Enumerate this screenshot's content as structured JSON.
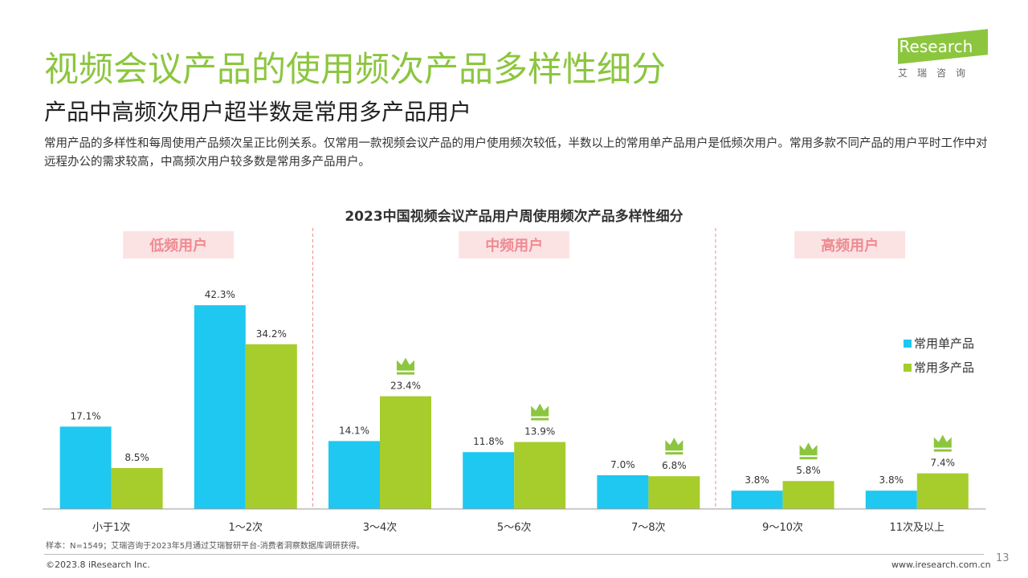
{
  "header": {
    "title": "视频会议产品的使用频次产品多样性细分",
    "subtitle": "产品中高频次用户超半数是常用多产品用户",
    "description": "常用产品的多样性和每周使用产品频次呈正比例关系。仅常用一款视频会议产品的用户使用频次较低，半数以上的常用单产品用户是低频次用户。常用多款不同产品的用户平时工作中对远程办公的需求较高，中高频次用户较多数是常用多产品用户。"
  },
  "logo": {
    "text": "iResearch",
    "subtext": "艾瑞咨询"
  },
  "chart_data": {
    "type": "bar",
    "title": "2023中国视频会议产品用户周使用频次产品多样性细分",
    "categories": [
      "小于1次",
      "1～2次",
      "3～4次",
      "5～6次",
      "7～8次",
      "9～10次",
      "11次及以上"
    ],
    "series": [
      {
        "name": "常用单产品",
        "color": "#1ec8f0",
        "values": [
          17.1,
          42.3,
          14.1,
          11.8,
          7.0,
          3.8,
          3.8
        ],
        "labels": [
          "17.1%",
          "42.3%",
          "14.1%",
          "11.8%",
          "7.0%",
          "3.8%",
          "3.8%"
        ]
      },
      {
        "name": "常用多产品",
        "color": "#a6cd2c",
        "values": [
          8.5,
          34.2,
          23.4,
          13.9,
          6.8,
          5.8,
          7.4
        ],
        "labels": [
          "8.5%",
          "34.2%",
          "23.4%",
          "13.9%",
          "6.8%",
          "5.8%",
          "7.4%"
        ]
      }
    ],
    "groups": [
      {
        "label": "低频用户",
        "categories": [
          0,
          1
        ]
      },
      {
        "label": "中频用户",
        "categories": [
          2,
          3,
          4
        ]
      },
      {
        "label": "高频用户",
        "categories": [
          5,
          6
        ]
      }
    ],
    "crown_categories": [
      2,
      3,
      4,
      5,
      6
    ],
    "group_label_bg": "#fbe3e4",
    "group_label_color": "#f08a92",
    "crown_color": "#8cc63f",
    "legend_position": "right"
  },
  "footer": {
    "note": "样本：N=1549；艾瑞咨询于2023年5月通过艾瑞智研平台-消费者洞察数据库调研获得。",
    "copyright": "©2023.8 iResearch Inc.",
    "website": "www.iresearch.com.cn",
    "page": "13"
  }
}
